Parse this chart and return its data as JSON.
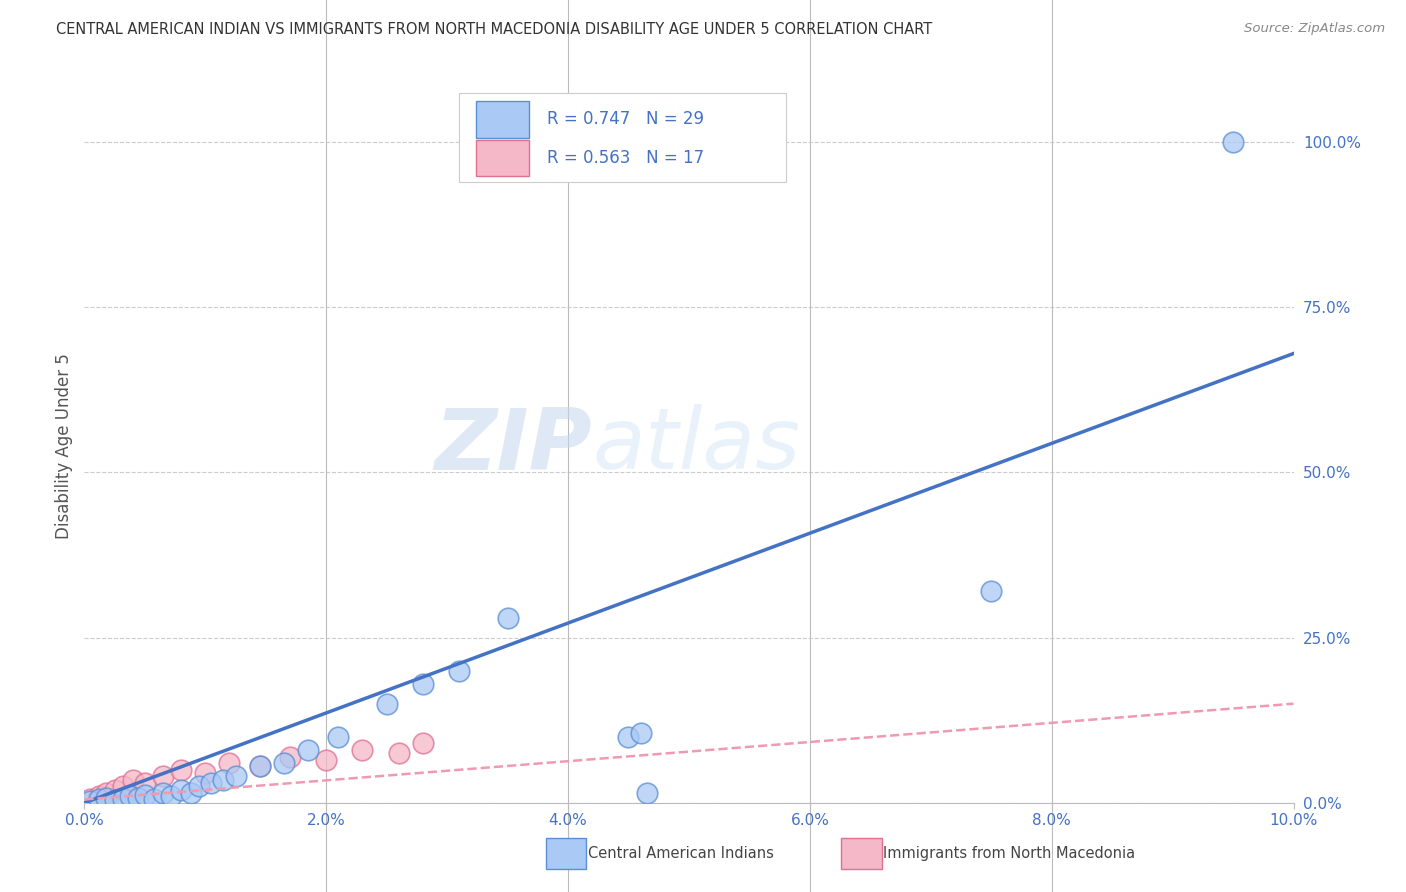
{
  "title": "CENTRAL AMERICAN INDIAN VS IMMIGRANTS FROM NORTH MACEDONIA DISABILITY AGE UNDER 5 CORRELATION CHART",
  "source": "Source: ZipAtlas.com",
  "ylabel": "Disability Age Under 5",
  "x_tick_vals": [
    0.0,
    2.0,
    4.0,
    6.0,
    8.0,
    10.0
  ],
  "y_tick_vals": [
    0.0,
    25.0,
    50.0,
    75.0,
    100.0
  ],
  "blue_R": 0.747,
  "blue_N": 29,
  "pink_R": 0.563,
  "pink_N": 17,
  "blue_color": "#aac9f5",
  "pink_color": "#f5b8c8",
  "blue_edge_color": "#5a8fd4",
  "pink_edge_color": "#e07090",
  "blue_line_color": "#4472c4",
  "pink_line_color": "#f09ab0",
  "blue_scatter_x": [
    0.05,
    0.12,
    0.18,
    0.25,
    0.32,
    0.38,
    0.44,
    0.5,
    0.58,
    0.65,
    0.72,
    0.8,
    0.88,
    0.95,
    1.05,
    1.15,
    1.25,
    1.45,
    1.65,
    1.85,
    2.1,
    2.5,
    2.8,
    3.1,
    3.5,
    4.5,
    4.6,
    4.65,
    7.5
  ],
  "blue_scatter_y": [
    0.3,
    0.5,
    0.8,
    0.4,
    0.6,
    1.0,
    0.7,
    1.2,
    0.5,
    1.5,
    1.0,
    2.0,
    1.5,
    2.5,
    3.0,
    3.5,
    4.0,
    5.5,
    6.0,
    8.0,
    10.0,
    15.0,
    18.0,
    20.0,
    28.0,
    10.0,
    10.5,
    1.5,
    32.0
  ],
  "pink_scatter_x": [
    0.05,
    0.12,
    0.18,
    0.25,
    0.32,
    0.4,
    0.5,
    0.65,
    0.8,
    1.0,
    1.2,
    1.45,
    1.7,
    2.0,
    2.3,
    2.6,
    2.8
  ],
  "pink_scatter_y": [
    0.5,
    1.0,
    1.5,
    2.0,
    2.5,
    3.5,
    3.0,
    4.0,
    5.0,
    4.5,
    6.0,
    5.5,
    7.0,
    6.5,
    8.0,
    7.5,
    9.0
  ],
  "blue_trend_x": [
    0.0,
    10.0
  ],
  "blue_trend_y": [
    0.0,
    68.0
  ],
  "pink_trend_x": [
    0.0,
    10.0
  ],
  "pink_trend_y": [
    0.5,
    15.0
  ],
  "watermark_zip": "ZIP",
  "watermark_atlas": "atlas",
  "background_color": "#ffffff",
  "grid_color": "#cccccc",
  "title_color": "#333333",
  "axis_label_color": "#4472c4",
  "source_color": "#888888",
  "ylabel_color": "#555555",
  "legend_label1": "Central American Indians",
  "legend_label2": "Immigrants from North Macedonia",
  "blue_outlier_x": 9.5,
  "blue_outlier_y": 100.0
}
